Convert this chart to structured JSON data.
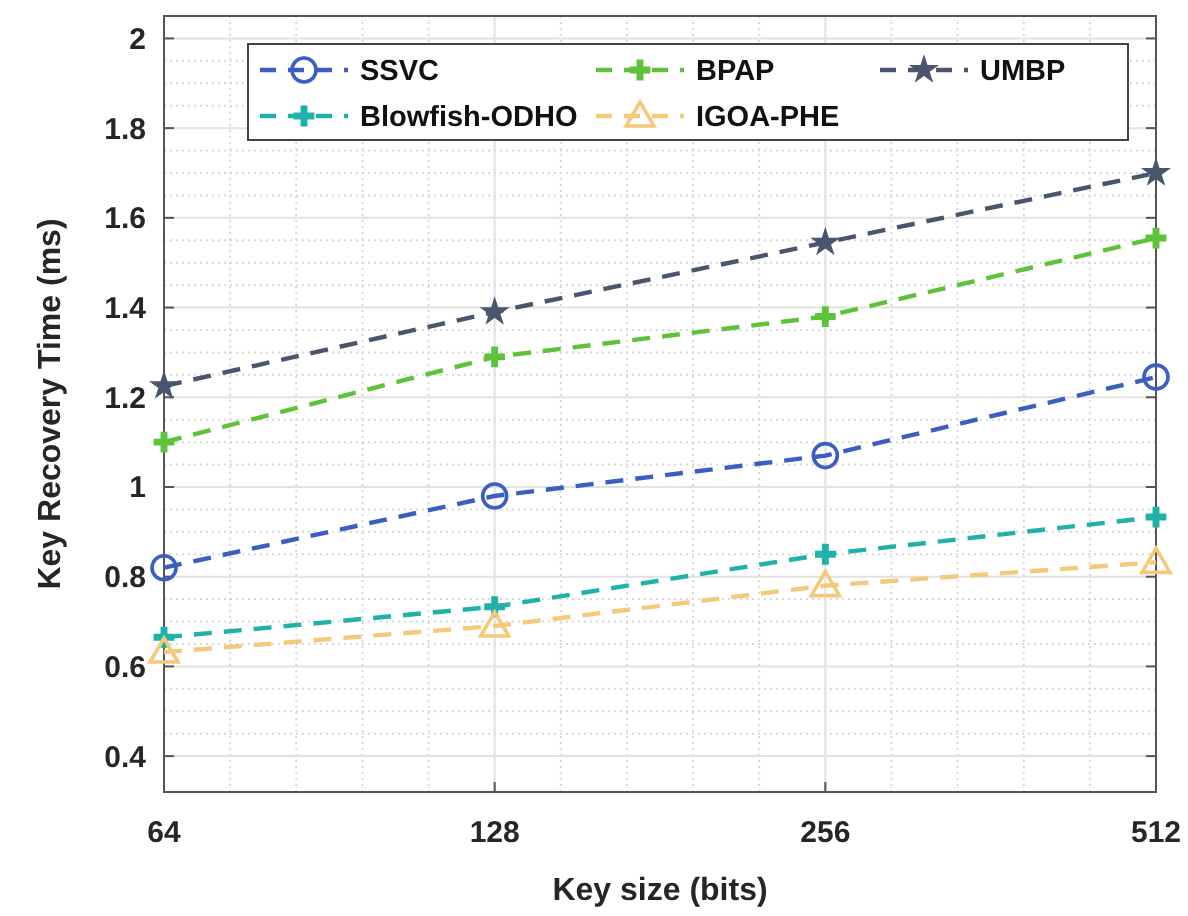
{
  "chart_data": {
    "type": "line",
    "xlabel": "Key size (bits)",
    "ylabel": "Key Recovery Time (ms)",
    "categories": [
      "64",
      "128",
      "256",
      "512"
    ],
    "series": [
      {
        "name": "SSVC",
        "color": "#3b5fc0",
        "marker": "circle",
        "values": [
          0.82,
          0.98,
          1.07,
          1.245
        ]
      },
      {
        "name": "BPAP",
        "color": "#5ec33a",
        "marker": "cross",
        "values": [
          1.1,
          1.29,
          1.38,
          1.555
        ]
      },
      {
        "name": "UMBP",
        "color": "#4a5670",
        "marker": "star",
        "values": [
          1.225,
          1.39,
          1.545,
          1.7
        ]
      },
      {
        "name": "Blowfish-ODHO",
        "color": "#20b2aa",
        "marker": "cross",
        "values": [
          0.665,
          0.733,
          0.85,
          0.933
        ]
      },
      {
        "name": "IGOA-PHE",
        "color": "#f5c97a",
        "marker": "triangle",
        "values": [
          0.632,
          0.69,
          0.78,
          0.832
        ]
      }
    ],
    "ylim": [
      0.32,
      2.05
    ],
    "yticks": [
      {
        "value": 0.4,
        "label": "0.4"
      },
      {
        "value": 0.6,
        "label": "0.6"
      },
      {
        "value": 0.8,
        "label": "0.8"
      },
      1,
      {
        "value": 1.2,
        "label": "1.2"
      },
      {
        "value": 1.4,
        "label": "1.4"
      },
      {
        "value": 1.6,
        "label": "1.6"
      },
      {
        "value": 1.8,
        "label": "1.8"
      },
      2
    ],
    "grid": true,
    "legend": "top",
    "line_style": "dashed"
  }
}
